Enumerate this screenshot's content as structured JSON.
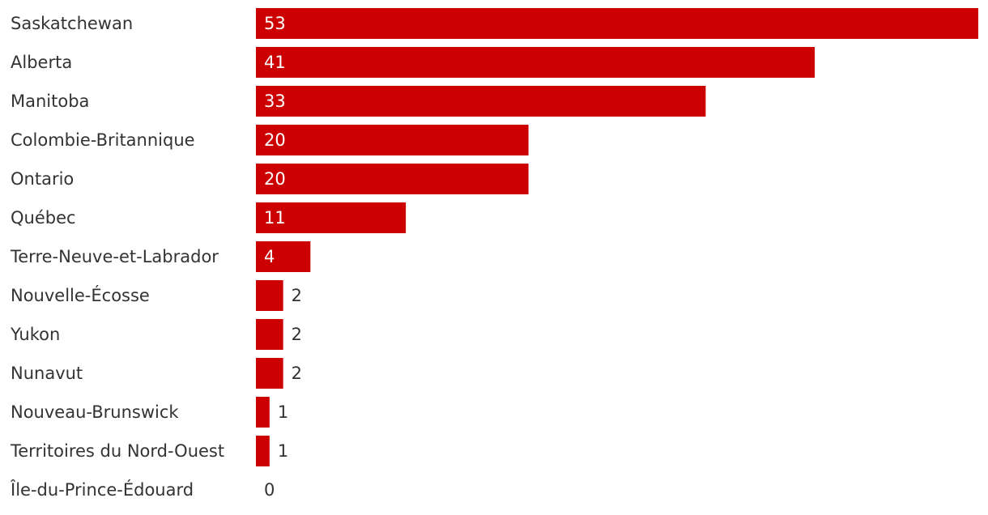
{
  "chart_data": {
    "type": "bar",
    "orientation": "horizontal",
    "categories": [
      "Saskatchewan",
      "Alberta",
      "Manitoba",
      "Colombie-Britannique",
      "Ontario",
      "Québec",
      "Terre-Neuve-et-Labrador",
      "Nouvelle-Écosse",
      "Yukon",
      "Nunavut",
      "Nouveau-Brunswick",
      "Territoires du Nord-Ouest",
      "Île-du-Prince-Édouard"
    ],
    "values": [
      53,
      41,
      33,
      20,
      20,
      11,
      4,
      2,
      2,
      2,
      1,
      1,
      0
    ],
    "color": "#cc0000"
  }
}
